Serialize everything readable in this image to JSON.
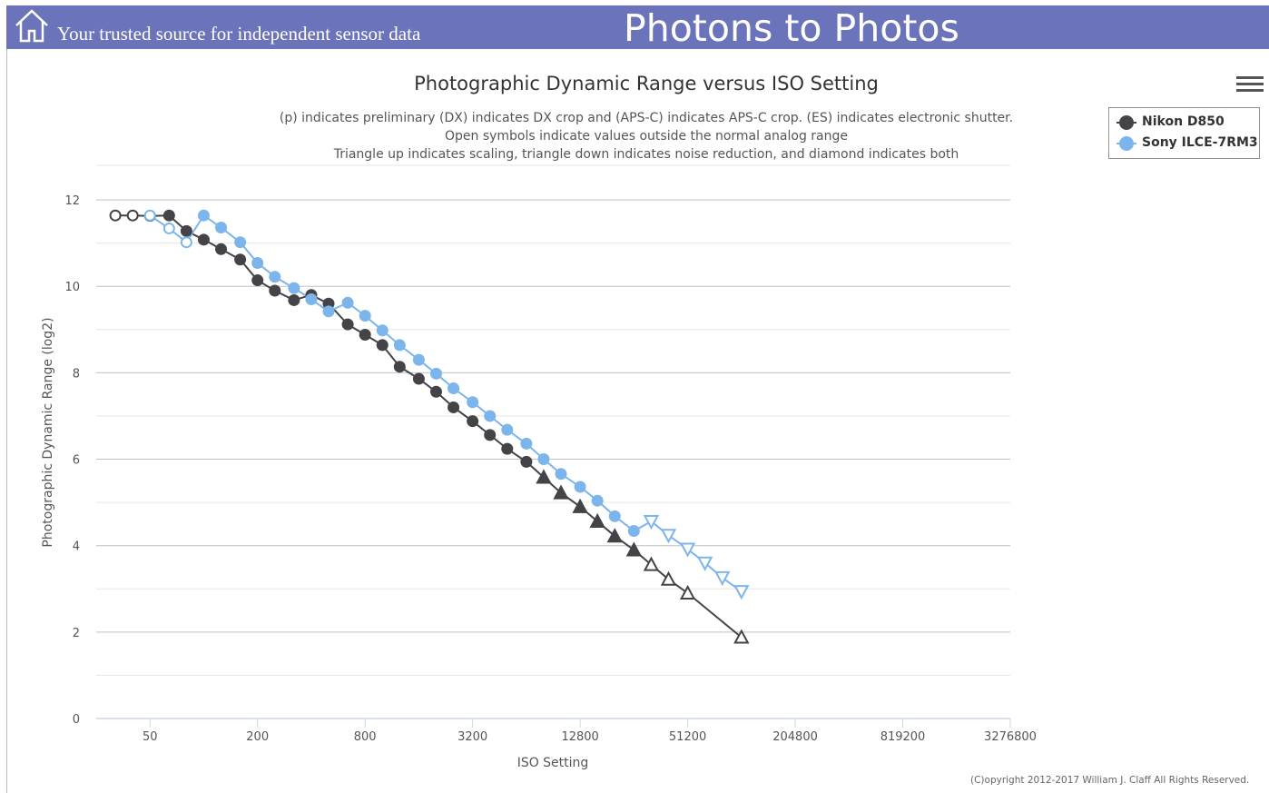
{
  "header": {
    "tagline": "Your trusted source for independent sensor data",
    "site_title": "Photons to Photos",
    "home_icon": "home-icon",
    "background_color": "#6b74ba"
  },
  "toolbar": {
    "menu_icon": "hamburger-menu-icon"
  },
  "copyright": "(C)opyright 2012-2017 William J. Claff All Rights Reserved.",
  "chart_data": {
    "type": "line",
    "title": "Photographic Dynamic Range versus ISO Setting",
    "subtitle": [
      "(p) indicates preliminary (DX) indicates DX crop and (APS-C) indicates APS-C crop. (ES) indicates electronic shutter.",
      "Open symbols indicate values outside the normal analog range",
      "Triangle up indicates scaling, triangle down indicates noise reduction, and diamond indicates both"
    ],
    "xlabel": "ISO Setting",
    "ylabel": "Photographic Dynamic Range (log2)",
    "x_scale": "log2",
    "x_ticks": [
      50,
      200,
      800,
      3200,
      12800,
      51200,
      204800,
      819200,
      3276800
    ],
    "xlim": [
      25,
      3276800
    ],
    "y_ticks": [
      0,
      2,
      4,
      6,
      8,
      10,
      12
    ],
    "ylim": [
      0,
      12.8
    ],
    "grid": true,
    "legend_position": "top-right",
    "series": [
      {
        "name": "Nikon D850",
        "color": "#434348",
        "points": [
          {
            "x": 32,
            "y": 11.64,
            "m": "circle-open"
          },
          {
            "x": 40,
            "y": 11.64,
            "m": "circle-open"
          },
          {
            "x": 50,
            "y": 11.63,
            "m": "circle"
          },
          {
            "x": 64,
            "y": 11.64,
            "m": "circle"
          },
          {
            "x": 80,
            "y": 11.28,
            "m": "circle"
          },
          {
            "x": 100,
            "y": 11.08,
            "m": "circle"
          },
          {
            "x": 125,
            "y": 10.86,
            "m": "circle"
          },
          {
            "x": 160,
            "y": 10.62,
            "m": "circle"
          },
          {
            "x": 200,
            "y": 10.14,
            "m": "circle"
          },
          {
            "x": 250,
            "y": 9.9,
            "m": "circle"
          },
          {
            "x": 320,
            "y": 9.68,
            "m": "circle"
          },
          {
            "x": 400,
            "y": 9.8,
            "m": "circle"
          },
          {
            "x": 500,
            "y": 9.6,
            "m": "circle"
          },
          {
            "x": 640,
            "y": 9.12,
            "m": "circle"
          },
          {
            "x": 800,
            "y": 8.88,
            "m": "circle"
          },
          {
            "x": 1000,
            "y": 8.64,
            "m": "circle"
          },
          {
            "x": 1250,
            "y": 8.14,
            "m": "circle"
          },
          {
            "x": 1600,
            "y": 7.86,
            "m": "circle"
          },
          {
            "x": 2000,
            "y": 7.56,
            "m": "circle"
          },
          {
            "x": 2500,
            "y": 7.2,
            "m": "circle"
          },
          {
            "x": 3200,
            "y": 6.88,
            "m": "circle"
          },
          {
            "x": 4000,
            "y": 6.56,
            "m": "circle"
          },
          {
            "x": 5000,
            "y": 6.24,
            "m": "circle"
          },
          {
            "x": 6400,
            "y": 5.94,
            "m": "circle"
          },
          {
            "x": 8000,
            "y": 5.58,
            "m": "triangle-up"
          },
          {
            "x": 10000,
            "y": 5.22,
            "m": "triangle-up"
          },
          {
            "x": 12800,
            "y": 4.9,
            "m": "triangle-up"
          },
          {
            "x": 16000,
            "y": 4.56,
            "m": "triangle-up"
          },
          {
            "x": 20000,
            "y": 4.22,
            "m": "triangle-up"
          },
          {
            "x": 25600,
            "y": 3.9,
            "m": "triangle-up"
          },
          {
            "x": 32000,
            "y": 3.56,
            "m": "triangle-up-open"
          },
          {
            "x": 40000,
            "y": 3.22,
            "m": "triangle-up-open"
          },
          {
            "x": 51200,
            "y": 2.9,
            "m": "triangle-up-open"
          },
          {
            "x": 102400,
            "y": 1.88,
            "m": "triangle-up-open"
          }
        ]
      },
      {
        "name": "Sony ILCE-7RM3",
        "color": "#7cb5ec",
        "points": [
          {
            "x": 50,
            "y": 11.64,
            "m": "circle-open"
          },
          {
            "x": 64,
            "y": 11.34,
            "m": "circle-open"
          },
          {
            "x": 80,
            "y": 11.02,
            "m": "circle-open"
          },
          {
            "x": 100,
            "y": 11.64,
            "m": "circle"
          },
          {
            "x": 125,
            "y": 11.36,
            "m": "circle"
          },
          {
            "x": 160,
            "y": 11.02,
            "m": "circle"
          },
          {
            "x": 200,
            "y": 10.54,
            "m": "circle"
          },
          {
            "x": 250,
            "y": 10.22,
            "m": "circle"
          },
          {
            "x": 320,
            "y": 9.96,
            "m": "circle"
          },
          {
            "x": 400,
            "y": 9.7,
            "m": "circle"
          },
          {
            "x": 500,
            "y": 9.42,
            "m": "circle"
          },
          {
            "x": 640,
            "y": 9.62,
            "m": "circle"
          },
          {
            "x": 800,
            "y": 9.32,
            "m": "circle"
          },
          {
            "x": 1000,
            "y": 8.98,
            "m": "circle"
          },
          {
            "x": 1250,
            "y": 8.64,
            "m": "circle"
          },
          {
            "x": 1600,
            "y": 8.3,
            "m": "circle"
          },
          {
            "x": 2000,
            "y": 7.98,
            "m": "circle"
          },
          {
            "x": 2500,
            "y": 7.64,
            "m": "circle"
          },
          {
            "x": 3200,
            "y": 7.32,
            "m": "circle"
          },
          {
            "x": 4000,
            "y": 7.0,
            "m": "circle"
          },
          {
            "x": 5000,
            "y": 6.68,
            "m": "circle"
          },
          {
            "x": 6400,
            "y": 6.36,
            "m": "circle"
          },
          {
            "x": 8000,
            "y": 6.0,
            "m": "circle"
          },
          {
            "x": 10000,
            "y": 5.66,
            "m": "circle"
          },
          {
            "x": 12800,
            "y": 5.36,
            "m": "circle"
          },
          {
            "x": 16000,
            "y": 5.04,
            "m": "circle"
          },
          {
            "x": 20000,
            "y": 4.68,
            "m": "circle"
          },
          {
            "x": 25600,
            "y": 4.34,
            "m": "circle"
          },
          {
            "x": 32000,
            "y": 4.56,
            "m": "triangle-down-open"
          },
          {
            "x": 40000,
            "y": 4.24,
            "m": "triangle-down-open"
          },
          {
            "x": 51200,
            "y": 3.92,
            "m": "triangle-down-open"
          },
          {
            "x": 64000,
            "y": 3.6,
            "m": "triangle-down-open"
          },
          {
            "x": 80000,
            "y": 3.26,
            "m": "triangle-down-open"
          },
          {
            "x": 102400,
            "y": 2.94,
            "m": "triangle-down-open"
          }
        ]
      }
    ]
  }
}
